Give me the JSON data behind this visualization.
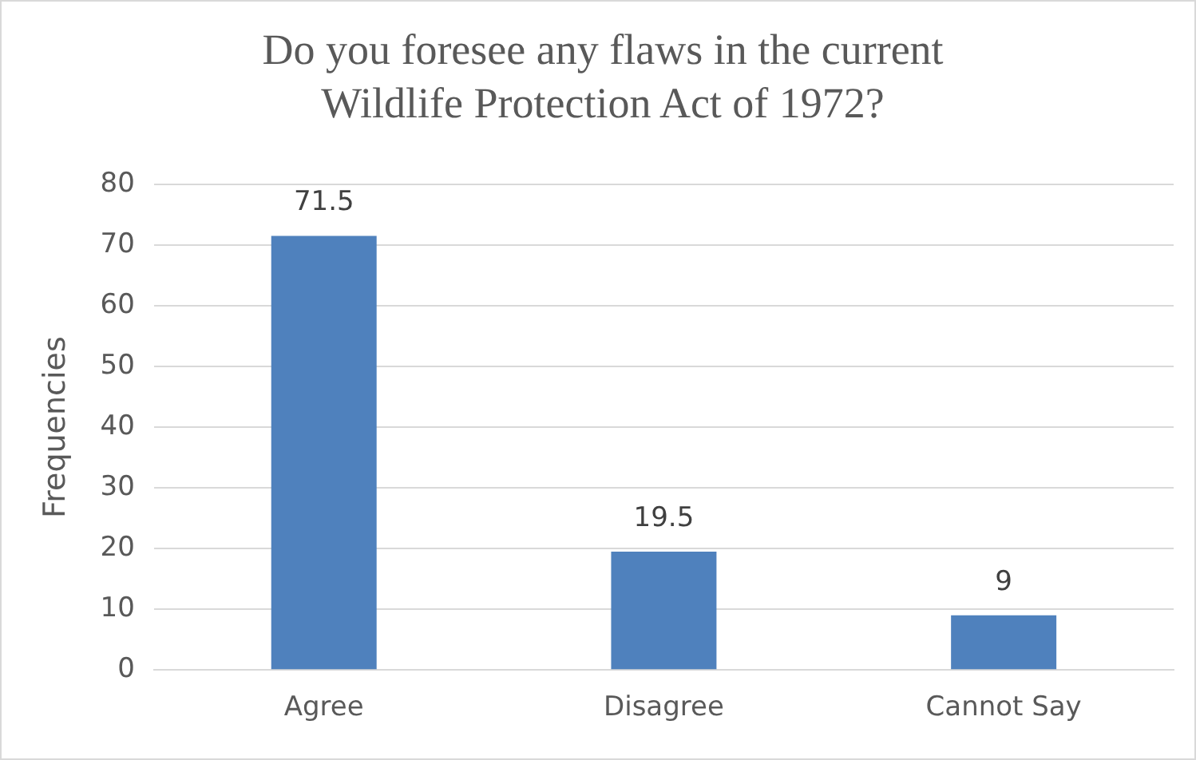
{
  "chart_data": {
    "type": "bar",
    "title": "Do you foresee any flaws in the current Wildlife Protection Act of 1972?",
    "ylabel": "Frequencies",
    "categories": [
      "Agree",
      "Disagree",
      "Cannot Say"
    ],
    "values": [
      71.5,
      19.5,
      9
    ],
    "color": "#4f81bd",
    "ylim": [
      0,
      80
    ],
    "yticks": [
      0,
      10,
      20,
      30,
      40,
      50,
      60,
      70,
      80
    ],
    "grid": "y",
    "legend": false,
    "data_labels": true
  }
}
